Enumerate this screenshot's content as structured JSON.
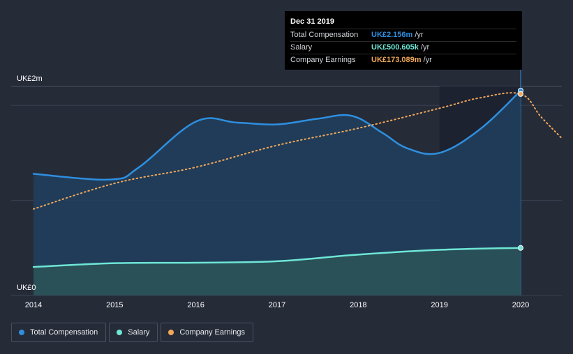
{
  "chart_data": {
    "type": "line",
    "y_tick_labels": [
      "UK£0",
      "UK£2m"
    ],
    "ylim": [
      0,
      2.2
    ],
    "x_tick_labels": [
      "2014",
      "2015",
      "2016",
      "2017",
      "2018",
      "2019",
      "2020"
    ],
    "xlim": [
      2014.0,
      2020.5
    ],
    "grid": "horizontal",
    "legend_position": "bottom-left",
    "series": [
      {
        "name": "Total Compensation",
        "key": "total",
        "color": "#2e8fe0",
        "style": "solid",
        "fill": "#213f5e",
        "x": [
          2014.0,
          2014.95,
          2015.3,
          2016.0,
          2016.5,
          2017.0,
          2017.5,
          2017.92,
          2018.3,
          2018.6,
          2019.0,
          2019.5,
          2020.0
        ],
        "values": [
          1.28,
          1.22,
          1.35,
          1.83,
          1.82,
          1.8,
          1.86,
          1.89,
          1.71,
          1.55,
          1.5,
          1.75,
          2.156
        ]
      },
      {
        "name": "Salary",
        "key": "salary",
        "color": "#6ee6d6",
        "style": "solid",
        "fill": "#2c5458",
        "x": [
          2014.0,
          2015.0,
          2016.0,
          2017.0,
          2018.0,
          2019.0,
          2020.0
        ],
        "values": [
          0.3,
          0.34,
          0.345,
          0.36,
          0.43,
          0.48,
          0.500605
        ]
      },
      {
        "name": "Company Earnings",
        "key": "earnings",
        "color": "#f0a85a",
        "style": "dotted",
        "x": [
          2014.0,
          2015.0,
          2016.0,
          2017.0,
          2018.0,
          2019.0,
          2019.5,
          2020.0,
          2020.25,
          2020.5
        ],
        "values": [
          0.91,
          1.18,
          1.35,
          1.58,
          1.76,
          1.97,
          2.08,
          2.12,
          1.88,
          1.66
        ]
      }
    ],
    "highlight_band": [
      2019.0,
      2020.0
    ],
    "highlight_x": 2020.0
  },
  "tooltip": {
    "date": "Dec 31 2019",
    "rows": [
      {
        "label": "Total Compensation",
        "value": "UK£2.156m",
        "unit": "/yr",
        "color": "#2e8fe0"
      },
      {
        "label": "Salary",
        "value": "UK£500.605k",
        "unit": "/yr",
        "color": "#6ee6d6"
      },
      {
        "label": "Company Earnings",
        "value": "UK£173.089m",
        "unit": "/yr",
        "color": "#f0a85a"
      }
    ]
  },
  "legend": [
    {
      "label": "Total Compensation",
      "color": "#2e8fe0"
    },
    {
      "label": "Salary",
      "color": "#6ee6d6"
    },
    {
      "label": "Company Earnings",
      "color": "#f0a85a"
    }
  ]
}
